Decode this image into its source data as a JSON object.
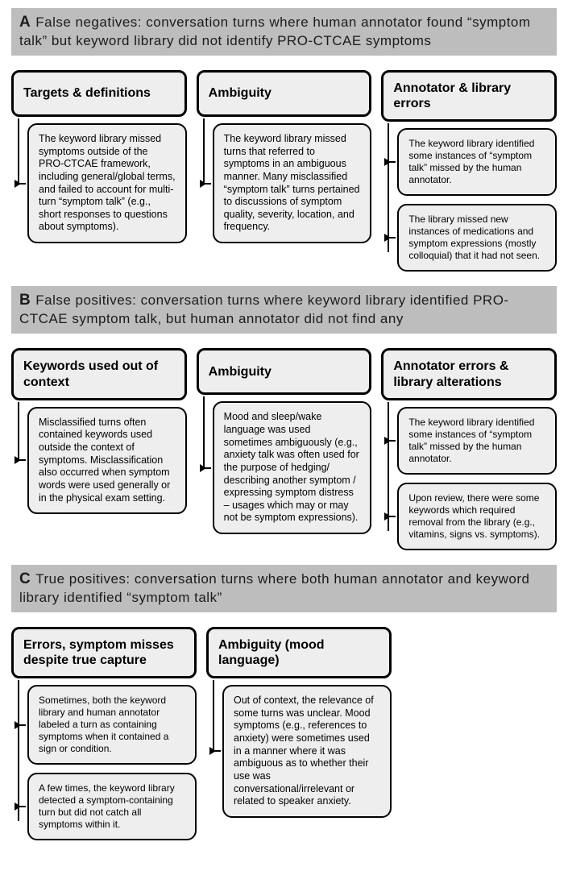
{
  "sections": [
    {
      "lead": "A",
      "title": "False negatives: conversation turns where human annotator found “symptom talk” but keyword library did not identify PRO-CTCAE symptoms",
      "columns": [
        {
          "heading": "Targets & definitions",
          "children": [
            "The keyword library missed symptoms outside of the PRO-CTCAE framework, including general/global terms, and failed to account for multi-turn “symptom talk” (e.g., short responses to questions about symptoms)."
          ]
        },
        {
          "heading": "Ambiguity",
          "children": [
            "The keyword library missed turns that referred to symptoms in an ambiguous manner. Many misclassified “symptom talk” turns pertained to discussions of symptom quality, severity, location, and frequency."
          ]
        },
        {
          "heading": "Annotator & library errors",
          "children": [
            "The keyword library identified some instances of “symptom talk” missed by the human annotator.",
            "The library missed new instances of medications and symptom expressions (mostly colloquial) that it had not seen."
          ]
        }
      ]
    },
    {
      "lead": "B",
      "title": "False positives: conversation turns where keyword library identified PRO-CTCAE symptom talk, but human annotator did not find any",
      "columns": [
        {
          "heading": "Keywords used out of context",
          "children": [
            "Misclassified turns often contained keywords used outside the context of symptoms. Misclassification also occurred when symptom words were used generally or in the physical exam setting."
          ]
        },
        {
          "heading": "Ambiguity",
          "children": [
            "Mood and sleep/wake language was used sometimes ambiguously (e.g., anxiety talk was often used for the purpose of hedging/ describing another symptom / expressing symptom distress – usages which may or may not be symptom expressions)."
          ]
        },
        {
          "heading": "Annotator errors & library alterations",
          "children": [
            "The keyword library identified some instances of “symptom talk” missed by the human annotator.",
            "Upon review, there were some keywords which required removal from the library (e.g., vitamins, signs vs. symptoms)."
          ]
        }
      ]
    },
    {
      "lead": "C",
      "title": "True positives: conversation turns where both human annotator and keyword library identified “symptom talk”",
      "columns": [
        {
          "heading": "Errors, symptom misses despite true capture",
          "children": [
            "Sometimes, both the keyword library and human annotator labeled a turn as containing symptoms when it contained a sign or condition.",
            "A few times, the keyword library detected a symptom-containing turn but did not catch all symptoms within it."
          ]
        },
        {
          "heading": "Ambiguity (mood language)",
          "children": [
            "Out of context, the relevance of some turns was unclear. Mood symptoms (e.g., references to anxiety) were sometimes used in a manner where it was ambiguous as to whether their use was conversational/irrelevant or related to speaker anxiety."
          ]
        }
      ]
    }
  ],
  "style": {
    "header_bg": "#bdbdbd",
    "box_bg": "#eeeeee",
    "border": "#000000",
    "page_bg": "#ffffff",
    "heading_fontsize": 16,
    "desc_fontsize": 12.5,
    "title_fontsize": 17,
    "box_radius": 12
  }
}
